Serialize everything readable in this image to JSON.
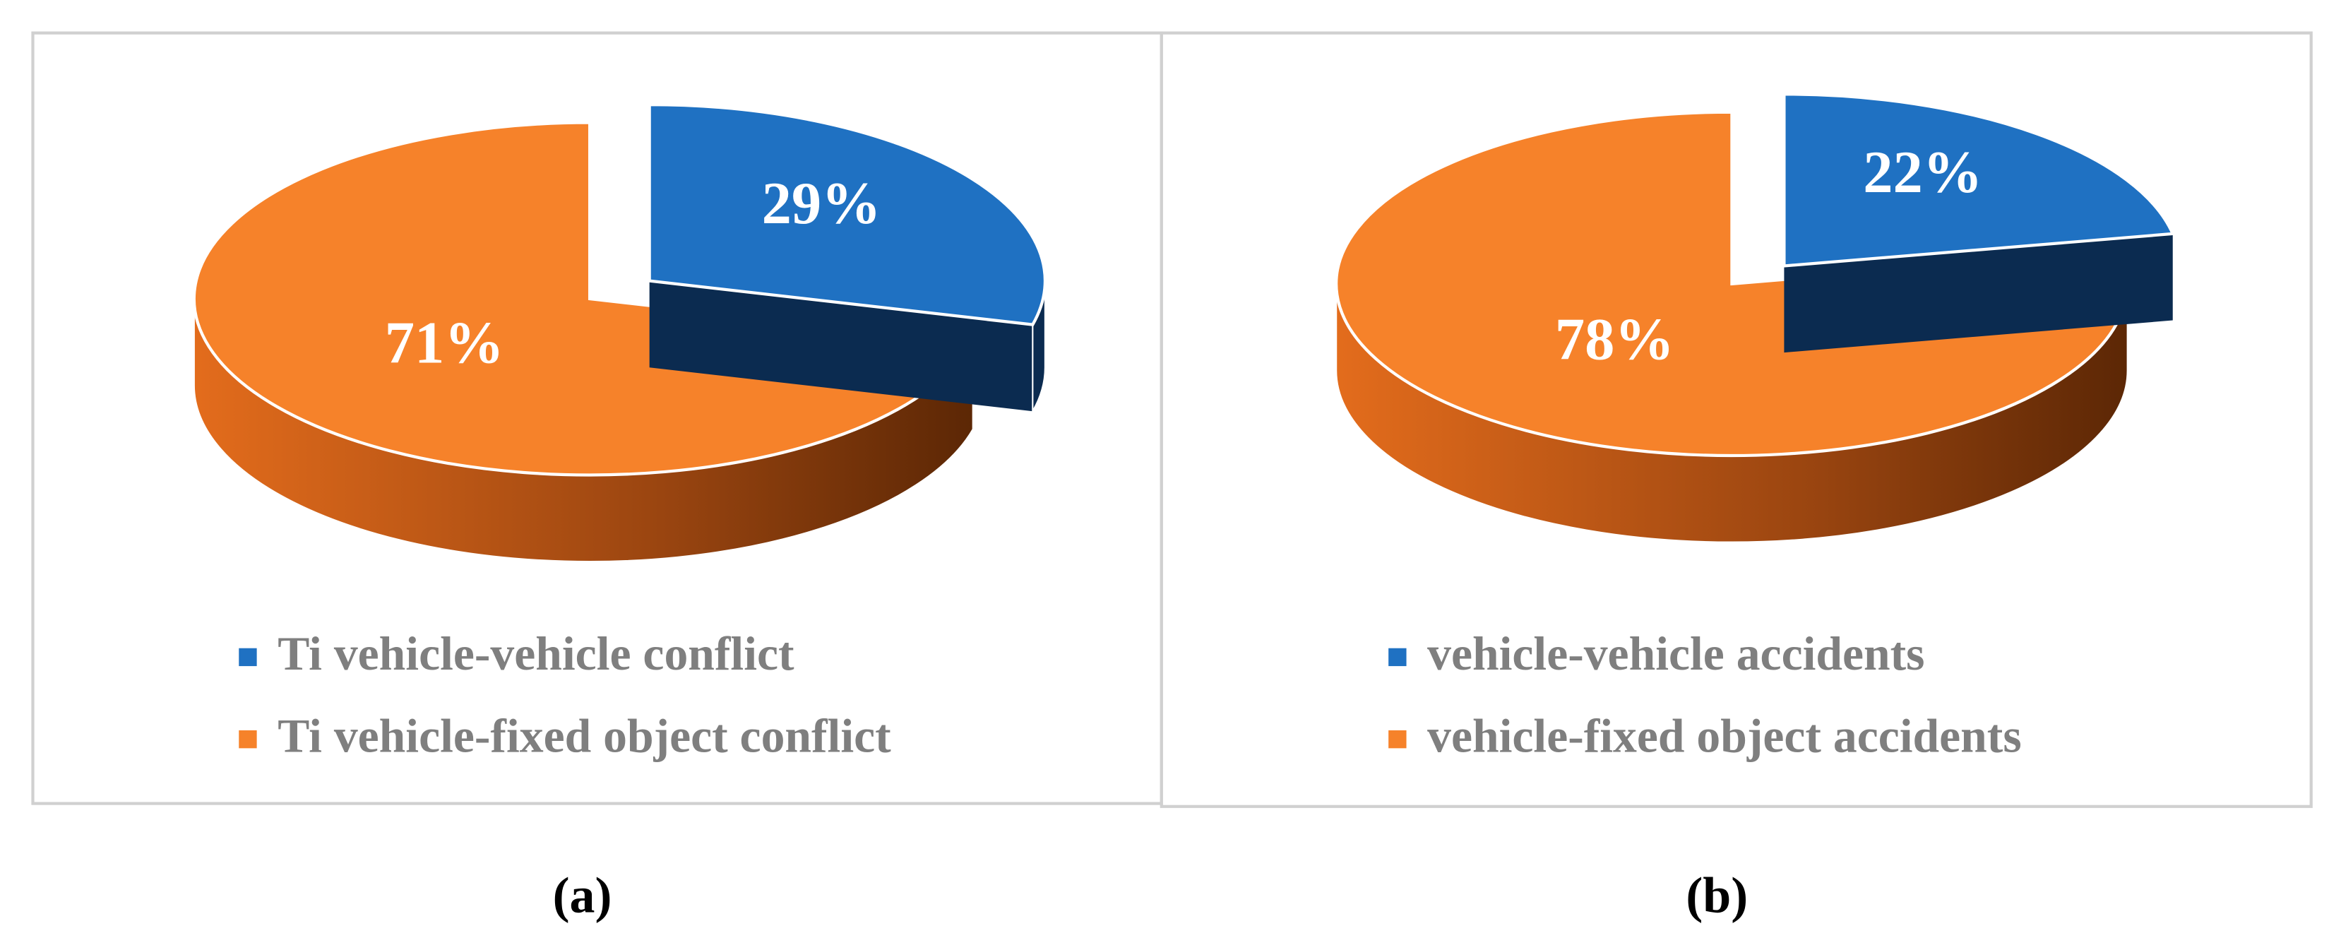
{
  "chart_data": [
    {
      "type": "pie",
      "label": "(a)",
      "categories": [
        "Ti vehicle-vehicle conflict",
        "Ti vehicle-fixed object conflict"
      ],
      "values": [
        29,
        71
      ],
      "value_labels": [
        "29%",
        "71%"
      ],
      "colors": [
        "#1f71c2",
        "#f6822a"
      ]
    },
    {
      "type": "pie",
      "label": "(b)",
      "categories": [
        "vehicle-vehicle accidents",
        "vehicle-fixed object accidents"
      ],
      "values": [
        22,
        78
      ],
      "value_labels": [
        "22%",
        "78%"
      ],
      "colors": [
        "#1f71c2",
        "#f6822a"
      ]
    }
  ]
}
